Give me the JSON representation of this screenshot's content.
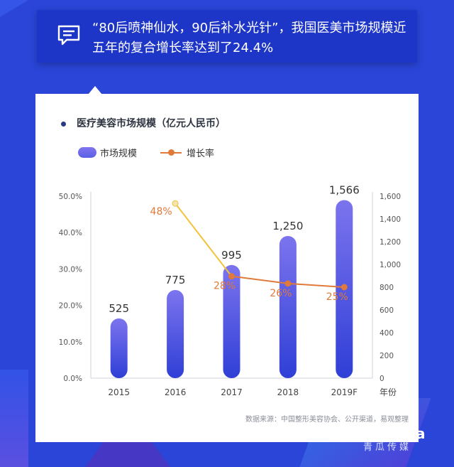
{
  "header": {
    "text": "“80后喷神仙水，90后补水光针”，我国医美市场规模近五年的复合增长率达到了24.4%"
  },
  "chart_data": {
    "type": "bar",
    "title": "医疗美容市场规模（亿元人民币）",
    "categories": [
      "2015",
      "2016",
      "2017",
      "2018",
      "2019F"
    ],
    "xlabel": "年份",
    "series": [
      {
        "name": "市场规模",
        "type": "bar",
        "axis": "right",
        "values": [
          525,
          775,
          995,
          1250,
          1566
        ],
        "color": "#5b62e8"
      },
      {
        "name": "增长率",
        "type": "line",
        "axis": "left",
        "values": [
          null,
          48,
          28,
          26,
          25
        ],
        "color": "#e07a3a"
      }
    ],
    "left_axis": {
      "ylim": [
        0,
        50
      ],
      "ticks": [
        "0.0%",
        "10.0%",
        "20.0%",
        "30.0%",
        "40.0%",
        "50.0%"
      ]
    },
    "right_axis": {
      "ylim": [
        0,
        1600
      ],
      "ticks": [
        "0",
        "200",
        "400",
        "600",
        "800",
        "1,000",
        "1,200",
        "1,400",
        "1,600"
      ]
    },
    "bar_labels": [
      "525",
      "775",
      "995",
      "1,250",
      "1,566"
    ],
    "line_labels": [
      "",
      "48%",
      "28%",
      "26%",
      "25%"
    ],
    "legend": "top-left",
    "grid": false,
    "source": "数据来源：中国整形美容协会、公开渠道，易观整理"
  },
  "watermark": "青瓜传媒"
}
